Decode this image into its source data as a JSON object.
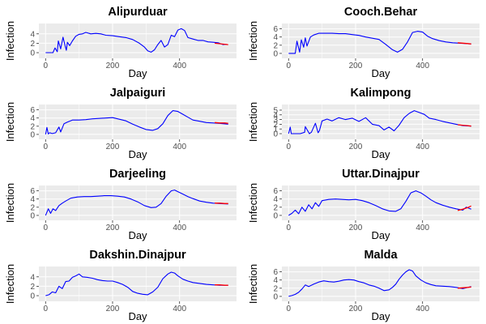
{
  "colors": {
    "panel_background": "#ebebeb",
    "grid_major": "#ffffff",
    "observed_series": "#0000ff",
    "fitted_series": "#ff0000",
    "tick_text": "#4d4d4d"
  },
  "chart_data": [
    {
      "type": "line",
      "title": "Alipurduar",
      "xlabel": "Day",
      "ylabel": "Infection",
      "xlim": [
        -20,
        570
      ],
      "ylim": [
        -1.2,
        6.2
      ],
      "xticks": [
        0,
        200,
        400
      ],
      "yticks": [
        0,
        2,
        4
      ],
      "grid": true,
      "series": [
        {
          "color": "#0000ff",
          "x": [
            0,
            22,
            28,
            35,
            38,
            45,
            52,
            58,
            62,
            65,
            72,
            80,
            90,
            100,
            110,
            120,
            135,
            150,
            165,
            180,
            200,
            220,
            240,
            260,
            280,
            295,
            305,
            315,
            325,
            335,
            345,
            355,
            365,
            375,
            385,
            395,
            405,
            415,
            425,
            440,
            455,
            470,
            485,
            500,
            515,
            530,
            540
          ],
          "y": [
            0,
            0,
            1.0,
            0.2,
            2.5,
            0.8,
            3.3,
            1.5,
            0.5,
            2.2,
            1.5,
            2.5,
            3.5,
            3.9,
            4.0,
            4.3,
            4.0,
            4.1,
            4.0,
            3.7,
            3.6,
            3.4,
            3.2,
            2.8,
            2.0,
            1.2,
            0.4,
            0.1,
            0.6,
            1.7,
            2.6,
            1.2,
            1.7,
            3.7,
            3.4,
            4.8,
            5.1,
            4.7,
            3.2,
            2.9,
            2.6,
            2.6,
            2.3,
            2.2,
            2.1,
            1.7,
            1.8
          ]
        },
        {
          "color": "#ff0000",
          "x": [
            505,
            520,
            535,
            545
          ],
          "y": [
            2.0,
            1.9,
            1.8,
            1.7
          ]
        }
      ]
    },
    {
      "type": "line",
      "title": "Cooch.Behar",
      "xlabel": "Day",
      "ylabel": "Infection",
      "xlim": [
        -20,
        570
      ],
      "ylim": [
        -1.2,
        7.3
      ],
      "xticks": [
        0,
        200,
        400
      ],
      "yticks": [
        0,
        2,
        4,
        6
      ],
      "grid": true,
      "series": [
        {
          "color": "#0000ff",
          "x": [
            0,
            20,
            25,
            33,
            38,
            45,
            50,
            55,
            65,
            75,
            90,
            110,
            130,
            150,
            170,
            190,
            210,
            230,
            250,
            270,
            290,
            310,
            325,
            340,
            355,
            370,
            385,
            400,
            415,
            430,
            450,
            470,
            490,
            510,
            530,
            545
          ],
          "y": [
            0,
            0,
            3.0,
            0.3,
            3.3,
            1.5,
            3.8,
            1.8,
            4.0,
            4.5,
            4.9,
            4.9,
            4.9,
            4.8,
            4.8,
            4.6,
            4.4,
            4.0,
            3.7,
            3.4,
            2.2,
            0.9,
            0.3,
            1.0,
            2.8,
            5.1,
            5.4,
            5.2,
            4.2,
            3.6,
            3.1,
            2.8,
            2.6,
            2.5,
            2.4,
            2.3
          ]
        },
        {
          "color": "#ff0000",
          "x": [
            505,
            520,
            535,
            545
          ],
          "y": [
            2.6,
            2.5,
            2.4,
            2.3
          ]
        }
      ]
    },
    {
      "type": "line",
      "title": "Jalpaiguri",
      "xlabel": "Day",
      "ylabel": "Infection",
      "xlim": [
        -20,
        570
      ],
      "ylim": [
        -1.2,
        7.3
      ],
      "xticks": [
        0,
        200,
        400
      ],
      "yticks": [
        0,
        2,
        4,
        6
      ],
      "grid": true,
      "series": [
        {
          "color": "#0000ff",
          "x": [
            0,
            4,
            8,
            12,
            20,
            30,
            40,
            45,
            55,
            65,
            80,
            100,
            120,
            140,
            160,
            180,
            200,
            220,
            240,
            260,
            280,
            300,
            320,
            335,
            350,
            365,
            380,
            395,
            410,
            425,
            440,
            460,
            480,
            500,
            520,
            545
          ],
          "y": [
            0,
            1.7,
            0.1,
            0.4,
            0.2,
            0.4,
            1.8,
            0.6,
            2.6,
            3.0,
            3.5,
            3.5,
            3.6,
            3.8,
            3.9,
            4.0,
            4.1,
            3.7,
            3.3,
            2.5,
            1.8,
            1.2,
            1.0,
            1.4,
            2.6,
            4.6,
            5.8,
            5.6,
            4.9,
            4.2,
            3.5,
            3.2,
            2.9,
            2.8,
            2.7,
            2.5
          ]
        },
        {
          "color": "#ff0000",
          "x": [
            505,
            520,
            535,
            545
          ],
          "y": [
            2.9,
            2.8,
            2.8,
            2.7
          ]
        }
      ]
    },
    {
      "type": "line",
      "title": "Kalimpong",
      "xlabel": "Day",
      "ylabel": "Infection",
      "xlim": [
        -20,
        570
      ],
      "ylim": [
        -1.2,
        6.2
      ],
      "xticks": [
        0,
        200,
        400
      ],
      "yticks": [
        0,
        1,
        2,
        3,
        4,
        5
      ],
      "grid": true,
      "series": [
        {
          "color": "#0000ff",
          "x": [
            0,
            5,
            8,
            15,
            35,
            48,
            50,
            62,
            68,
            80,
            88,
            92,
            100,
            115,
            130,
            150,
            170,
            190,
            210,
            230,
            250,
            270,
            285,
            300,
            315,
            330,
            345,
            360,
            375,
            390,
            405,
            420,
            440,
            460,
            480,
            500,
            520,
            545
          ],
          "y": [
            0,
            1.4,
            0,
            0,
            0,
            0.3,
            1.5,
            0,
            0.3,
            2.2,
            0.2,
            0.6,
            2.7,
            3.1,
            2.7,
            3.4,
            3.0,
            3.3,
            2.6,
            3.4,
            2.0,
            1.7,
            0.8,
            1.4,
            0.6,
            1.8,
            3.4,
            4.3,
            4.9,
            4.5,
            4.1,
            3.3,
            3.0,
            2.6,
            2.3,
            2.0,
            1.7,
            1.6
          ]
        },
        {
          "color": "#ff0000",
          "x": [
            505,
            520,
            535,
            545
          ],
          "y": [
            1.9,
            1.8,
            1.7,
            1.6
          ]
        }
      ]
    },
    {
      "type": "line",
      "title": "Darjeeling",
      "xlabel": "Day",
      "ylabel": "Infection",
      "xlim": [
        -20,
        570
      ],
      "ylim": [
        -1.2,
        7.3
      ],
      "xticks": [
        0,
        200,
        400
      ],
      "yticks": [
        0,
        2,
        4,
        6
      ],
      "grid": true,
      "series": [
        {
          "color": "#0000ff",
          "x": [
            0,
            8,
            15,
            22,
            30,
            40,
            50,
            60,
            75,
            95,
            115,
            135,
            155,
            175,
            195,
            215,
            235,
            255,
            275,
            295,
            315,
            330,
            345,
            360,
            375,
            385,
            395,
            410,
            425,
            440,
            460,
            480,
            500,
            520,
            545
          ],
          "y": [
            0,
            1.6,
            0.5,
            1.6,
            1.2,
            2.4,
            3.0,
            3.5,
            4.2,
            4.5,
            4.6,
            4.6,
            4.7,
            4.8,
            4.8,
            4.7,
            4.5,
            4.0,
            3.3,
            2.4,
            1.9,
            2.0,
            2.9,
            4.7,
            6.0,
            6.2,
            5.8,
            5.2,
            4.6,
            4.1,
            3.5,
            3.2,
            3.0,
            2.9,
            2.8
          ]
        },
        {
          "color": "#ff0000",
          "x": [
            505,
            520,
            535,
            545
          ],
          "y": [
            3.0,
            3.0,
            2.9,
            2.9
          ]
        }
      ]
    },
    {
      "type": "line",
      "title": "Uttar.Dinajpur",
      "xlabel": "Day",
      "ylabel": "Infection",
      "xlim": [
        -20,
        570
      ],
      "ylim": [
        -1.2,
        7.3
      ],
      "xticks": [
        0,
        200,
        400
      ],
      "yticks": [
        0,
        2,
        4,
        6
      ],
      "grid": true,
      "series": [
        {
          "color": "#0000ff",
          "x": [
            0,
            10,
            20,
            30,
            40,
            50,
            60,
            70,
            80,
            90,
            100,
            120,
            140,
            160,
            180,
            200,
            220,
            240,
            260,
            280,
            300,
            320,
            335,
            350,
            365,
            380,
            395,
            410,
            425,
            440,
            460,
            480,
            500,
            520,
            530,
            545
          ],
          "y": [
            0,
            0.5,
            1.3,
            0.4,
            2.0,
            1.0,
            2.6,
            1.6,
            3.1,
            2.2,
            3.6,
            3.9,
            4.0,
            3.9,
            3.8,
            3.9,
            3.6,
            3.1,
            2.4,
            1.6,
            1.1,
            1.0,
            1.6,
            3.4,
            5.5,
            6.0,
            5.5,
            4.7,
            3.8,
            3.1,
            2.5,
            2.0,
            1.6,
            1.3,
            2.0,
            1.5
          ]
        },
        {
          "color": "#ff0000",
          "x": [
            505,
            520,
            535,
            545
          ],
          "y": [
            1.2,
            1.5,
            1.9,
            2.3
          ]
        }
      ]
    },
    {
      "type": "line",
      "title": "Dakshin.Dinajpur",
      "xlabel": "Day",
      "ylabel": "Infection",
      "xlim": [
        -20,
        570
      ],
      "ylim": [
        -1.2,
        6.2
      ],
      "xticks": [
        0,
        200,
        400
      ],
      "yticks": [
        0,
        2,
        4
      ],
      "grid": true,
      "series": [
        {
          "color": "#0000ff",
          "x": [
            0,
            10,
            20,
            30,
            40,
            50,
            60,
            70,
            80,
            90,
            100,
            110,
            125,
            140,
            155,
            170,
            185,
            200,
            215,
            230,
            245,
            260,
            275,
            290,
            305,
            320,
            335,
            350,
            365,
            375,
            385,
            395,
            410,
            425,
            440,
            460,
            480,
            500,
            520,
            545
          ],
          "y": [
            0,
            0.2,
            0.8,
            0.6,
            2.0,
            1.5,
            3.0,
            3.1,
            3.9,
            4.2,
            4.6,
            4.0,
            3.9,
            3.7,
            3.4,
            3.2,
            3.1,
            3.1,
            2.8,
            2.4,
            1.8,
            0.9,
            0.5,
            0.3,
            0.2,
            0.8,
            1.8,
            3.6,
            4.6,
            5.0,
            4.8,
            4.2,
            3.5,
            3.1,
            2.8,
            2.6,
            2.4,
            2.3,
            2.2,
            2.2
          ]
        },
        {
          "color": "#ff0000",
          "x": [
            505,
            520,
            535,
            545
          ],
          "y": [
            2.3,
            2.3,
            2.2,
            2.2
          ]
        }
      ]
    },
    {
      "type": "line",
      "title": "Malda",
      "xlabel": "Day",
      "ylabel": "Infection",
      "xlim": [
        -20,
        570
      ],
      "ylim": [
        -1.2,
        7.3
      ],
      "xticks": [
        0,
        200,
        400
      ],
      "yticks": [
        0,
        2,
        4,
        6
      ],
      "grid": true,
      "series": [
        {
          "color": "#0000ff",
          "x": [
            0,
            10,
            20,
            30,
            40,
            50,
            60,
            75,
            90,
            105,
            120,
            135,
            150,
            165,
            180,
            195,
            210,
            225,
            240,
            255,
            270,
            285,
            300,
            310,
            320,
            330,
            340,
            350,
            360,
            370,
            380,
            395,
            410,
            425,
            440,
            460,
            480,
            500,
            520,
            545
          ],
          "y": [
            0,
            0.2,
            0.5,
            1.0,
            1.8,
            2.8,
            2.4,
            3.0,
            3.5,
            3.8,
            3.6,
            3.5,
            3.7,
            4.0,
            4.1,
            4.0,
            3.6,
            3.3,
            2.8,
            2.5,
            2.0,
            1.4,
            1.6,
            2.2,
            3.0,
            4.2,
            5.2,
            6.0,
            6.5,
            6.2,
            5.0,
            4.0,
            3.3,
            2.9,
            2.6,
            2.5,
            2.4,
            2.2,
            1.9,
            2.4
          ]
        },
        {
          "color": "#ff0000",
          "x": [
            505,
            520,
            535,
            545
          ],
          "y": [
            2.0,
            2.1,
            2.2,
            2.3
          ]
        }
      ]
    }
  ]
}
